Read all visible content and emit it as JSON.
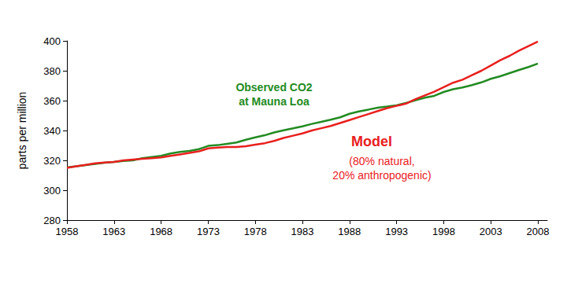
{
  "chart_data": {
    "type": "line",
    "y_label": "parts per million",
    "x": [
      1958,
      1959,
      1960,
      1961,
      1962,
      1963,
      1964,
      1965,
      1966,
      1967,
      1968,
      1969,
      1970,
      1971,
      1972,
      1973,
      1974,
      1975,
      1976,
      1977,
      1978,
      1979,
      1980,
      1981,
      1982,
      1983,
      1984,
      1985,
      1986,
      1987,
      1988,
      1989,
      1990,
      1991,
      1992,
      1993,
      1994,
      1995,
      1996,
      1997,
      1998,
      1999,
      2000,
      2001,
      2002,
      2003,
      2004,
      2005,
      2006,
      2007,
      2008
    ],
    "series": [
      {
        "name": "Observed CO2 at Mauna Loa",
        "color": "#228b22",
        "values": [
          315.3,
          316.0,
          316.9,
          317.6,
          318.4,
          319.0,
          319.6,
          320.0,
          321.4,
          322.2,
          323.0,
          324.6,
          325.7,
          326.3,
          327.5,
          329.7,
          330.2,
          331.1,
          332.0,
          333.8,
          335.4,
          336.8,
          338.7,
          340.1,
          341.4,
          342.8,
          344.4,
          345.8,
          347.2,
          348.8,
          351.2,
          352.8,
          354.0,
          355.3,
          356.0,
          356.9,
          358.4,
          360.2,
          362.0,
          363.2,
          365.8,
          367.6,
          368.8,
          370.4,
          372.2,
          374.6,
          376.3,
          378.4,
          380.5,
          382.5,
          384.8
        ]
      },
      {
        "name": "Model",
        "color": "#e8201e",
        "values": [
          315.0,
          316.0,
          317.0,
          318.0,
          318.5,
          319.0,
          320.0,
          320.5,
          321.0,
          321.5,
          322.0,
          323.0,
          324.0,
          325.0,
          326.0,
          328.0,
          328.5,
          329.0,
          329.0,
          329.5,
          330.5,
          331.5,
          333.0,
          335.0,
          336.5,
          338.0,
          340.0,
          341.5,
          343.0,
          345.0,
          347.0,
          349.0,
          351.0,
          353.0,
          355.0,
          356.5,
          358.0,
          361.0,
          363.5,
          366.0,
          369.0,
          372.0,
          374.0,
          377.0,
          380.0,
          383.5,
          387.0,
          390.0,
          393.5,
          396.5,
          399.5
        ]
      }
    ],
    "annotations": [
      {
        "text": "Observed CO2",
        "color": "#228b22"
      },
      {
        "text": "at Mauna Loa",
        "color": "#228b22"
      },
      {
        "text": "Model",
        "color": "#e8201e"
      },
      {
        "text": "(80% natural,",
        "color": "#e8201e"
      },
      {
        "text": "20% anthropogenic)",
        "color": "#e8201e"
      }
    ],
    "xlim": [
      1958,
      2009
    ],
    "xticks": [
      1958,
      1963,
      1968,
      1973,
      1978,
      1983,
      1988,
      1993,
      1998,
      2003,
      2008
    ],
    "ylim": [
      280,
      400
    ],
    "yticks": [
      280,
      300,
      320,
      340,
      360,
      380,
      400
    ],
    "grid": false
  }
}
